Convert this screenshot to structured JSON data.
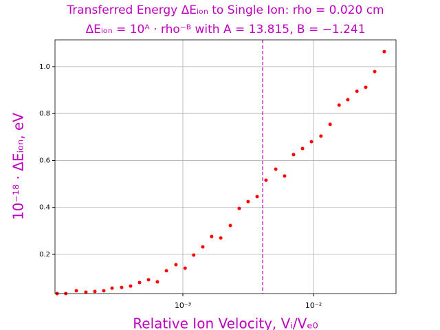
{
  "chart_data": {
    "type": "scatter",
    "title": [
      "Transferred Energy ΔEᵢₒₙ to Single Ion: rho = 0.020 cm",
      "ΔEᵢₒₙ = 10ᴬ · rho⁻ᴮ with A = 13.815, B = −1.241"
    ],
    "xlabel": "Relative Ion Velocity, Vᵢ/Vₑ₀",
    "ylabel": "10⁻¹⁸ · ΔEᵢₒₙ, eV",
    "label_color": "#bf00bf",
    "xscale": "log",
    "grid": true,
    "xlim": [
      0.000105,
      0.0428
    ],
    "ylim": [
      0.033,
      1.114
    ],
    "xticks": [
      {
        "value": 0.001,
        "label": "10⁻³"
      },
      {
        "value": 0.01,
        "label": "10⁻²"
      }
    ],
    "yticks": [
      0.2,
      0.4,
      0.6,
      0.8,
      {
        "value": 1,
        "label": "1.0"
      }
    ],
    "vline": {
      "x": 0.00408,
      "color": "#bf00bf",
      "style": "dashed"
    },
    "series": [
      {
        "color": "#ff0000",
        "x": [
          0.000109,
          0.000127,
          0.000153,
          0.000181,
          0.000212,
          0.000248,
          0.000287,
          0.00034,
          0.000398,
          0.000466,
          0.000546,
          0.000638,
          0.000748,
          0.000885,
          0.00104,
          0.00121,
          0.00142,
          0.00166,
          0.00195,
          0.00231,
          0.0027,
          0.00316,
          0.0037,
          0.00433,
          0.00514,
          0.00601,
          0.00703,
          0.00824,
          0.00964,
          0.0114,
          0.0134,
          0.0157,
          0.0183,
          0.0215,
          0.0251,
          0.0294,
          0.0348
        ],
        "values": [
          0.033,
          0.033,
          0.045,
          0.039,
          0.042,
          0.045,
          0.056,
          0.059,
          0.065,
          0.08,
          0.092,
          0.083,
          0.13,
          0.156,
          0.141,
          0.197,
          0.232,
          0.276,
          0.27,
          0.323,
          0.396,
          0.425,
          0.446,
          0.516,
          0.563,
          0.534,
          0.625,
          0.651,
          0.68,
          0.704,
          0.754,
          0.836,
          0.859,
          0.895,
          0.912,
          0.979,
          1.064
        ]
      }
    ]
  }
}
